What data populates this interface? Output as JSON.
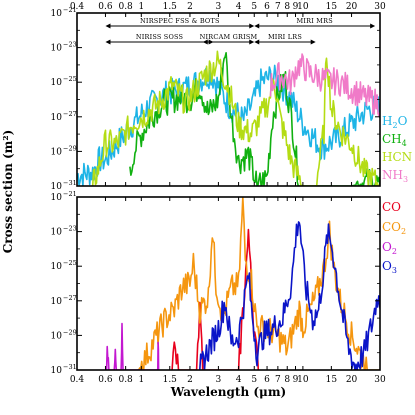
{
  "chart_data": {
    "type": "line",
    "xlabel": "Wavelength (μm)",
    "ylabel": "Cross section (m²)",
    "xscale": "log",
    "yscale": "log",
    "xlim": [
      0.4,
      30
    ],
    "x_ticks": [
      0.4,
      0.6,
      0.8,
      1,
      1.5,
      2,
      3,
      4,
      5,
      6,
      7,
      8,
      9,
      10,
      15,
      20,
      30
    ],
    "x_tick_labels": [
      "0.4",
      "0.6",
      "0.8",
      "1",
      "1.5",
      "2",
      "3",
      "4",
      "5",
      "6",
      "7",
      "8",
      "9",
      "10",
      "15",
      "20",
      "30"
    ],
    "instruments": [
      {
        "label": "NIRSPEC FSS & BOTS",
        "range": [
          0.6,
          5.0
        ]
      },
      {
        "label": "MIRI MRS",
        "range": [
          5.0,
          28.0
        ]
      },
      {
        "label": "NIRISS SOSS",
        "range": [
          0.6,
          2.8
        ]
      },
      {
        "label": "NIRCAM GRISM",
        "range": [
          2.4,
          5.0
        ]
      },
      {
        "label": "MIRI LRS",
        "range": [
          5.0,
          12.0
        ]
      }
    ],
    "panels": [
      {
        "name": "top",
        "ylim": [
          1e-31,
          1e-21
        ],
        "y_ticks": [
          {
            "base": "10",
            "exp": "−21"
          },
          {
            "base": "10",
            "exp": "−23"
          },
          {
            "base": "10",
            "exp": "−25"
          },
          {
            "base": "10",
            "exp": "−27"
          },
          {
            "base": "10",
            "exp": "−29"
          },
          {
            "base": "10",
            "exp": "−31"
          }
        ],
        "series": [
          {
            "name": "H2O",
            "label": "H",
            "sub": "2",
            "suffix": "O",
            "color": "#1eb4e6",
            "x": [
              0.4,
              0.5,
              0.55,
              0.6,
              0.7,
              0.8,
              0.95,
              1.1,
              1.4,
              1.9,
              2.7,
              3.5,
              4.3,
              5.0,
              5.5,
              6.3,
              7.0,
              8.5,
              10,
              13,
              16,
              20,
              25,
              30
            ],
            "y": [
              -30.4,
              -30.2,
              -29.5,
              -29.5,
              -28.6,
              -27.9,
              -27.1,
              -26.4,
              -25.7,
              -25.3,
              -24.5,
              -26.4,
              -27.2,
              -26.0,
              -25.0,
              -24.7,
              -24.9,
              -26.0,
              -27.4,
              -28.8,
              -28.3,
              -27.4,
              -26.6,
              -26.4
            ]
          },
          {
            "name": "CH4",
            "label": "CH",
            "sub": "4",
            "suffix": "",
            "color": "#10b010",
            "x": [
              0.85,
              0.9,
              1.0,
              1.15,
              1.35,
              1.7,
              2.0,
              2.3,
              2.6,
              3.0,
              3.3,
              3.6,
              4.0,
              4.6,
              5.2,
              6.0,
              6.5,
              7.0,
              7.7,
              8.5,
              9.5,
              11,
              14,
              20,
              24,
              27,
              30
            ],
            "y": [
              -30.5,
              -29.0,
              -28.0,
              -27.0,
              -26.2,
              -25.9,
              -26.0,
              -25.2,
              -26.8,
              -26.0,
              -23.1,
              -27.0,
              -29.6,
              -29.2,
              -31.0,
              -30.5,
              -27.0,
              -25.8,
              -24.6,
              -27.0,
              -31.0,
              -31.0,
              -31.0,
              -31.0,
              -30.8,
              -30.6,
              -31.0
            ]
          },
          {
            "name": "HCN",
            "label": "HCN",
            "sub": "",
            "suffix": "",
            "color": "#b4dc14",
            "x": [
              0.5,
              0.55,
              0.6,
              0.7,
              0.8,
              0.9,
              1.05,
              1.3,
              1.55,
              1.9,
              2.5,
              3.0,
              3.5,
              4.0,
              4.8,
              5.5,
              6.2,
              6.6,
              7.2,
              8.5,
              10,
              12,
              13.5,
              14.0,
              15,
              17,
              20,
              24,
              30
            ],
            "y": [
              -31.0,
              -29.8,
              -28.5,
              -28.6,
              -27.9,
              -27.3,
              -26.9,
              -26.2,
              -25.2,
              -26.2,
              -24.5,
              -23.8,
              -25.5,
              -27.5,
              -28.0,
              -27.0,
              -26.0,
              -24.6,
              -27.0,
              -29.6,
              -31.0,
              -31.0,
              -27.8,
              -23.1,
              -26.5,
              -27.8,
              -28.6,
              -30.2,
              -31.0
            ]
          },
          {
            "name": "NH3",
            "label": "NH",
            "sub": "3",
            "suffix": "",
            "color": "#f07ac8",
            "x": [
              6.3,
              7.0,
              7.8,
              8.5,
              9.0,
              9.5,
              10.3,
              11.0,
              12,
              14,
              17,
              20,
              24,
              30
            ],
            "y": [
              -25.2,
              -24.6,
              -24.8,
              -25.1,
              -24.3,
              -24.0,
              -24.2,
              -24.5,
              -24.6,
              -24.9,
              -25.0,
              -25.4,
              -25.9,
              -26.2
            ]
          }
        ]
      },
      {
        "name": "bottom",
        "ylim": [
          1e-31,
          1e-21
        ],
        "y_ticks": [
          {
            "base": "10",
            "exp": "−21"
          },
          {
            "base": "10",
            "exp": "−23"
          },
          {
            "base": "10",
            "exp": "−25"
          },
          {
            "base": "10",
            "exp": "−27"
          },
          {
            "base": "10",
            "exp": "−29"
          },
          {
            "base": "10",
            "exp": "−31"
          }
        ],
        "series": [
          {
            "name": "CO",
            "label": "CO",
            "sub": "",
            "suffix": "",
            "color": "#e8001c",
            "x": [
              1.55,
              1.6,
              1.7,
              2.2,
              2.3,
              2.4,
              3.0,
              4.0,
              4.3,
              4.5,
              4.6,
              4.75,
              4.9,
              5.1,
              5.3
            ],
            "y": [
              -31.0,
              -29.8,
              -31.0,
              -31.0,
              -27.6,
              -31.0,
              -31.0,
              -31.0,
              -27.0,
              -24.4,
              -23.5,
              -24.6,
              -27.6,
              -29.6,
              -31.0
            ]
          },
          {
            "name": "CO2",
            "label": "CO",
            "sub": "2",
            "suffix": "",
            "color": "#f5960f",
            "x": [
              0.95,
              1.05,
              1.2,
              1.4,
              1.6,
              1.8,
              2.0,
              2.1,
              2.3,
              2.6,
              2.75,
              2.9,
              3.2,
              3.6,
              4.0,
              4.25,
              4.4,
              4.8,
              5.2,
              6.0,
              7.0,
              8.0,
              9.0,
              9.5,
              10,
              12,
              13.5,
              14.6,
              15.6,
              17,
              20,
              25,
              30
            ],
            "y": [
              -31.0,
              -30.4,
              -29.3,
              -28.1,
              -27.5,
              -26.2,
              -26.0,
              -24.8,
              -27.5,
              -26.8,
              -22.8,
              -26.0,
              -28.0,
              -26.3,
              -26.1,
              -21.3,
              -24.6,
              -25.8,
              -28.5,
              -28.6,
              -29.0,
              -29.8,
              -28.3,
              -27.5,
              -28.5,
              -26.8,
              -25.1,
              -23.0,
              -25.2,
              -27.0,
              -29.0,
              -31.0,
              -31.0
            ]
          },
          {
            "name": "O2",
            "label": "O",
            "sub": "2",
            "suffix": "",
            "color": "#c318d0",
            "x": [
              0.61,
              0.62,
              0.63,
              0.68,
              0.69,
              0.7,
              0.75,
              0.76,
              0.77,
              1.26,
              1.27,
              1.28
            ],
            "y": [
              -31.0,
              -29.8,
              -31.0,
              -31.0,
              -29.1,
              -31.0,
              -31.0,
              -27.8,
              -31.0,
              -31.0,
              -30.1,
              -31.0
            ]
          },
          {
            "name": "O3",
            "label": "O",
            "sub": "3",
            "suffix": "",
            "color": "#0a14c8",
            "x": [
              2.3,
              2.6,
              3.0,
              3.3,
              3.6,
              4.0,
              4.6,
              4.8,
              5.2,
              5.7,
              6.5,
              7.5,
              8.5,
              9.0,
              9.4,
              9.6,
              9.9,
              10.5,
              11.5,
              12.5,
              13.5,
              14.2,
              15.0,
              15.7,
              17,
              19,
              21,
              24,
              27,
              29,
              30
            ],
            "y": [
              -31.0,
              -29.8,
              -28.6,
              -27.0,
              -29.4,
              -29.0,
              -25.5,
              -27.4,
              -30.0,
              -29.0,
              -28.6,
              -28.0,
              -26.0,
              -23.5,
              -22.2,
              -22.6,
              -24.4,
              -26.4,
              -28.0,
              -27.6,
              -25.0,
              -23.2,
              -23.7,
              -24.8,
              -27.0,
              -29.6,
              -30.8,
              -30.0,
              -28.2,
              -26.7,
              -27.2
            ]
          }
        ]
      }
    ]
  }
}
